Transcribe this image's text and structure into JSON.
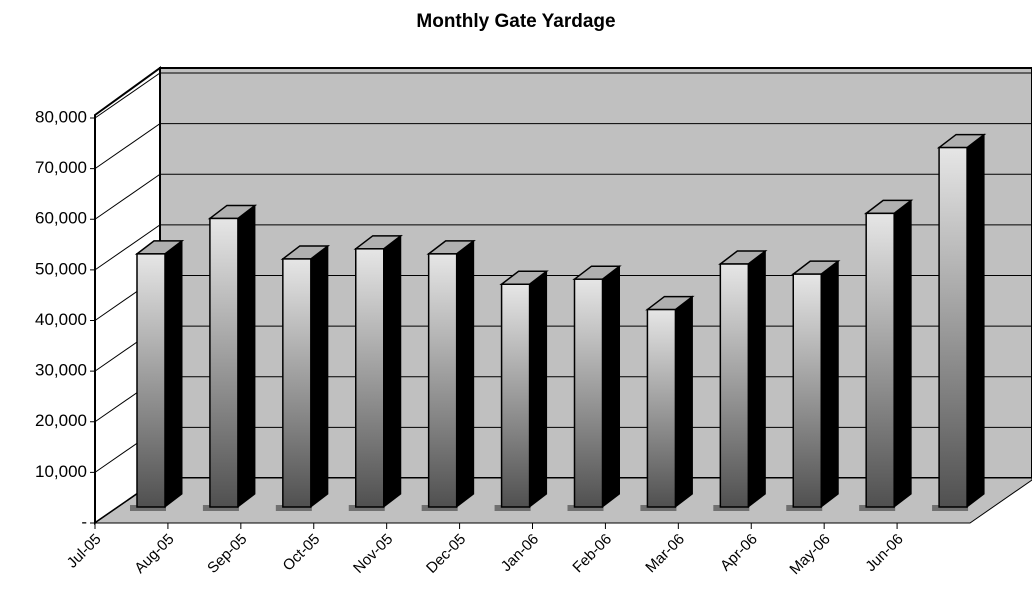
{
  "chart_data": {
    "type": "bar3d",
    "title": "Monthly Gate Yardage",
    "categories": [
      "Jul-05",
      "Aug-05",
      "Sep-05",
      "Oct-05",
      "Nov-05",
      "Dec-05",
      "Jan-06",
      "Feb-06",
      "Mar-06",
      "Apr-06",
      "May-06",
      "Jun-06"
    ],
    "values": [
      50000,
      57000,
      49000,
      51000,
      50000,
      44000,
      45000,
      39000,
      48000,
      46000,
      58000,
      71000
    ],
    "color": "#b0b0b0",
    "ylim": [
      0,
      80000
    ],
    "yticks": [
      {
        "value": 0,
        "label": "-"
      },
      {
        "value": 10000,
        "label": "10,000"
      },
      {
        "value": 20000,
        "label": "20,000"
      },
      {
        "value": 30000,
        "label": "30,000"
      },
      {
        "value": 40000,
        "label": "40,000"
      },
      {
        "value": 50000,
        "label": "50,000"
      },
      {
        "value": 60000,
        "label": "60,000"
      },
      {
        "value": 70000,
        "label": "70,000"
      },
      {
        "value": 80000,
        "label": "80,000"
      }
    ],
    "grid": true
  }
}
